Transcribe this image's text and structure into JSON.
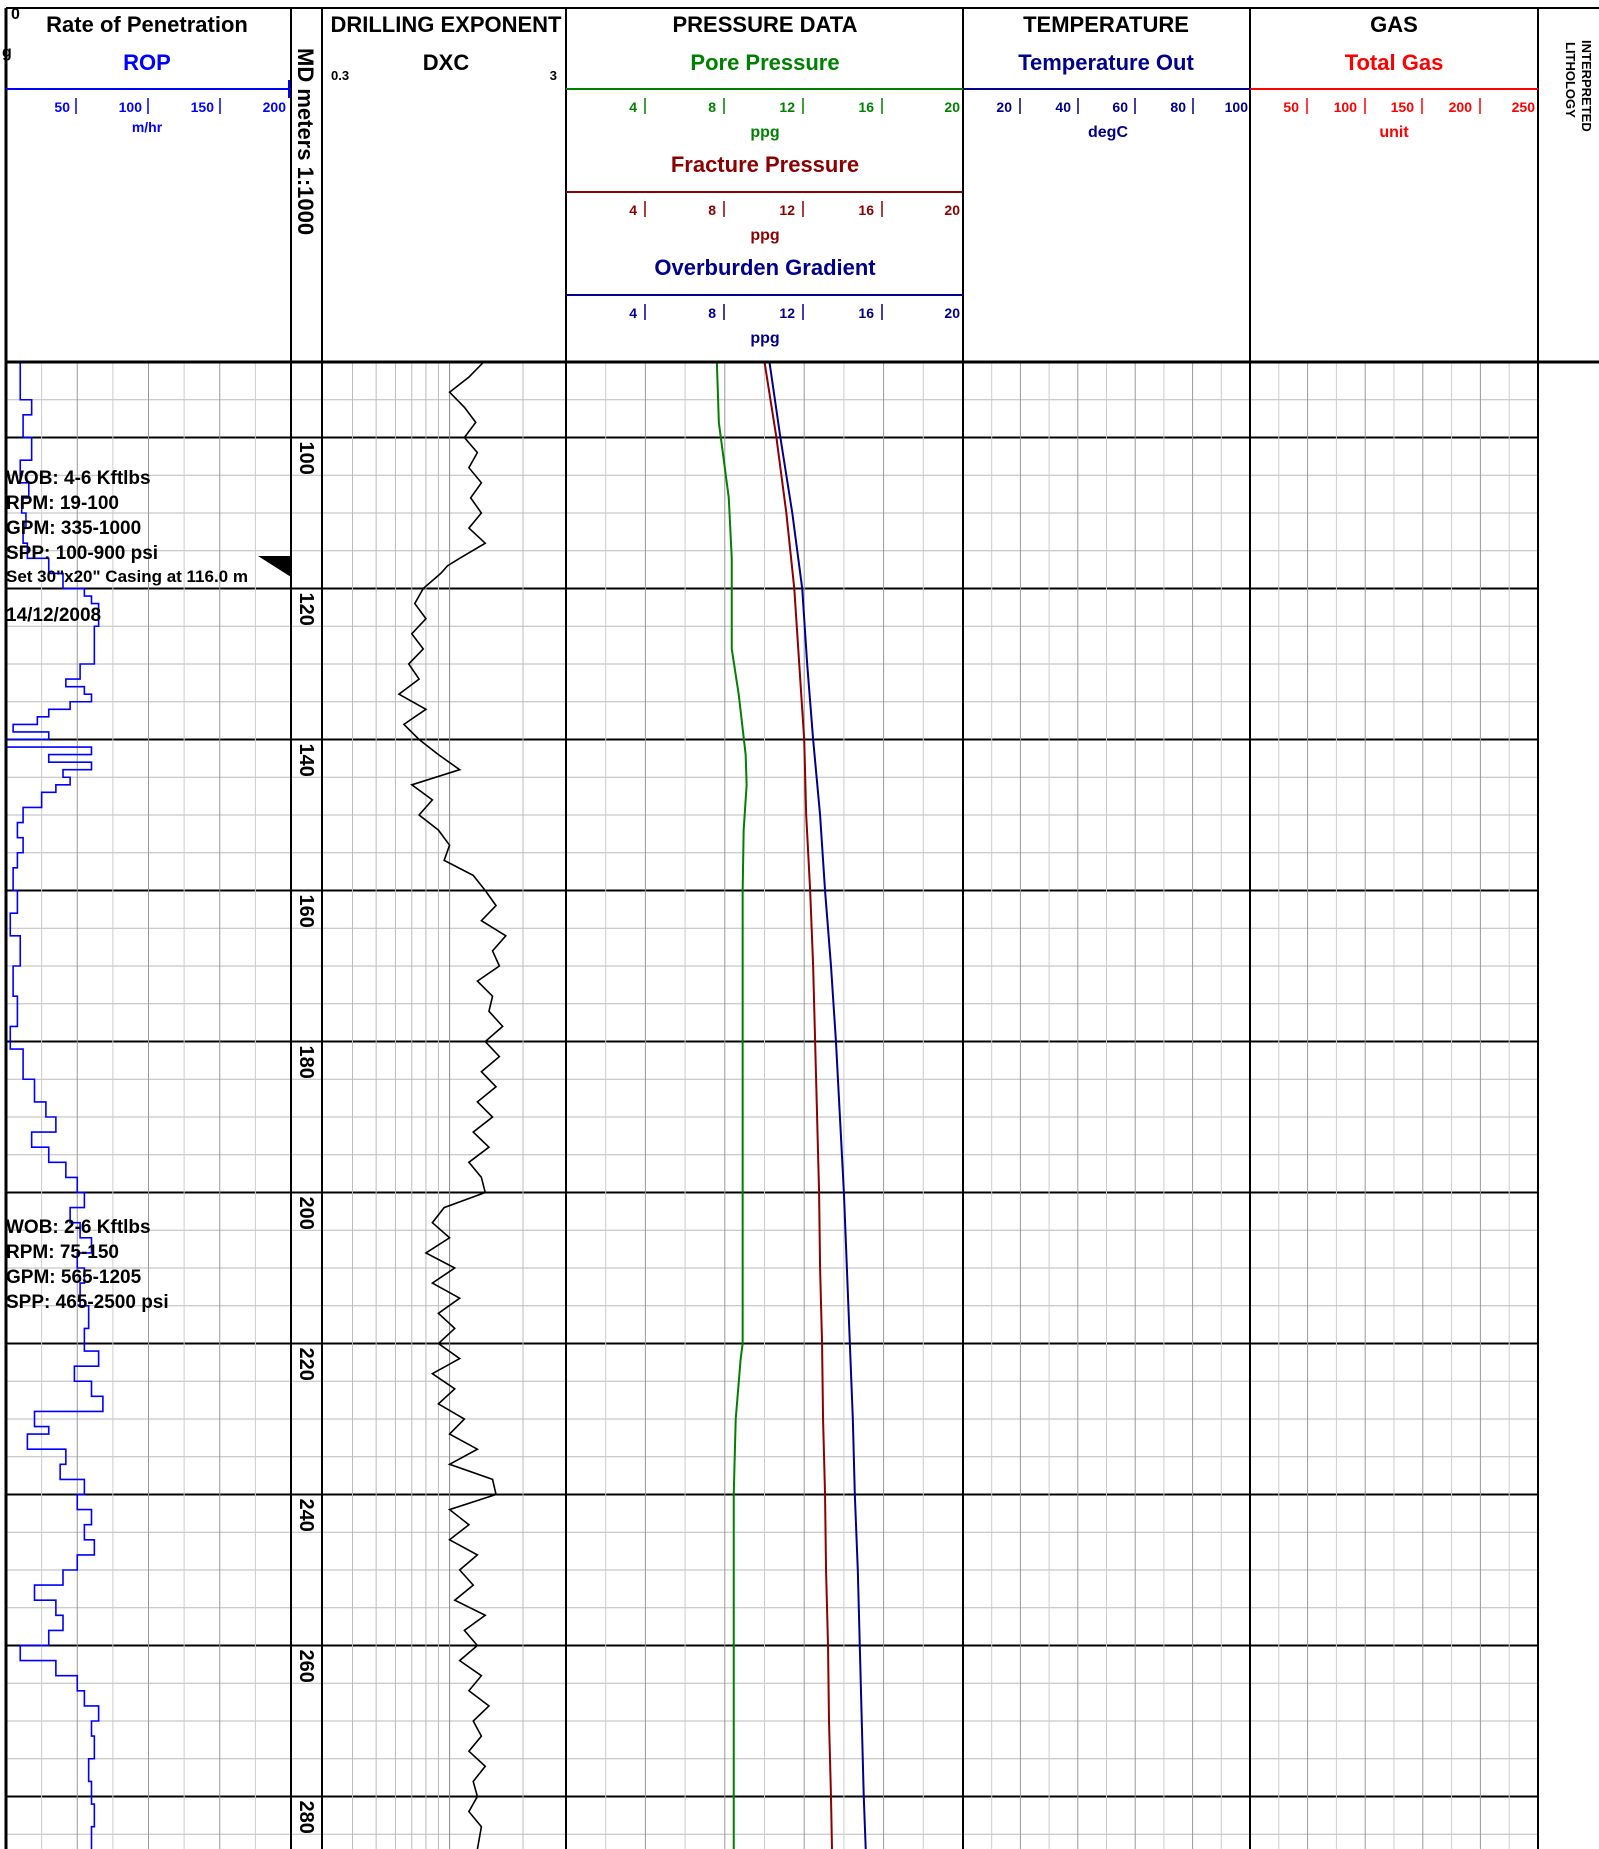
{
  "depth_track": {
    "label": "MD meters 1:1000",
    "range": [
      90,
      287
    ],
    "major_every": 20,
    "minor_every": 5
  },
  "corner_marks": [
    "0",
    "g"
  ],
  "lithology_label": [
    "INTERPRETED",
    "LITHOLOGY"
  ],
  "tracks": {
    "rop": {
      "title": "Rate of Penetration",
      "curve": "ROP",
      "color": "#0000ff",
      "ticks": [
        "50",
        "100",
        "150",
        "200"
      ],
      "unit": "m/hr",
      "range": [
        0,
        200
      ]
    },
    "dxc": {
      "title": "DRILLING  EXPONENT",
      "curve": "DXC",
      "min_label": "0.3",
      "max_label": "3",
      "range": [
        0.3,
        3
      ],
      "log_scale": true
    },
    "pressure": {
      "title": "PRESSURE  DATA",
      "curves": [
        {
          "name": "Pore Pressure",
          "color": "#008000",
          "ticks": [
            "4",
            "8",
            "12",
            "16",
            "20"
          ],
          "unit": "ppg"
        },
        {
          "name": "Fracture Pressure",
          "color": "#8b0000",
          "ticks": [
            "4",
            "8",
            "12",
            "16",
            "20"
          ],
          "unit": "ppg"
        },
        {
          "name": "Overburden Gradient",
          "color": "#00008b",
          "ticks": [
            "4",
            "8",
            "12",
            "16",
            "20"
          ],
          "unit": "ppg"
        }
      ],
      "range": [
        0,
        20
      ]
    },
    "temperature": {
      "title": "TEMPERATURE",
      "curve": "Temperature Out",
      "color": "#00008b",
      "ticks": [
        "20",
        "40",
        "60",
        "80",
        "100"
      ],
      "unit": "degC",
      "range": [
        0,
        100
      ]
    },
    "gas": {
      "title": "GAS",
      "curve": "Total Gas",
      "color": "#ff0000",
      "ticks": [
        "50",
        "100",
        "150",
        "200",
        "250"
      ],
      "unit": "unit",
      "range": [
        0,
        250
      ]
    }
  },
  "annotations": {
    "block1": [
      "WOB: 4-6 Kftlbs",
      "RPM: 19-100",
      "GPM: 335-1000",
      "SPP: 100-900 psi"
    ],
    "casing": "Set 30\"x20\" Casing at 116.0 m",
    "date": "14/12/2008",
    "block2": [
      "WOB: 2-6 Kftlbs",
      "RPM: 75-150",
      "GPM: 565-1205",
      "SPP: 465-2500 psi"
    ]
  },
  "chart_data": {
    "type": "line",
    "depth_unit": "m",
    "series": [
      {
        "name": "ROP",
        "x_unit": "m/hr",
        "points": [
          [
            90,
            8
          ],
          [
            95,
            10
          ],
          [
            97,
            18
          ],
          [
            100,
            12
          ],
          [
            103,
            18
          ],
          [
            106,
            10
          ],
          [
            108,
            16
          ],
          [
            110,
            11
          ],
          [
            112,
            14
          ],
          [
            114,
            12
          ],
          [
            116,
            15
          ],
          [
            118,
            30
          ],
          [
            120,
            40
          ],
          [
            121,
            55
          ],
          [
            122,
            60
          ],
          [
            125,
            65
          ],
          [
            128,
            62
          ],
          [
            130,
            62
          ],
          [
            132,
            52
          ],
          [
            133,
            42
          ],
          [
            134,
            55
          ],
          [
            135,
            60
          ],
          [
            136,
            45
          ],
          [
            137,
            30
          ],
          [
            138,
            22
          ],
          [
            139,
            5
          ],
          [
            140,
            30
          ],
          [
            141,
            0
          ],
          [
            142,
            60
          ],
          [
            143,
            30
          ],
          [
            144,
            60
          ],
          [
            145,
            40
          ],
          [
            146,
            45
          ],
          [
            147,
            35
          ],
          [
            149,
            25
          ],
          [
            151,
            12
          ],
          [
            153,
            8
          ],
          [
            155,
            12
          ],
          [
            157,
            8
          ],
          [
            160,
            5
          ],
          [
            163,
            8
          ],
          [
            166,
            3
          ],
          [
            170,
            10
          ],
          [
            174,
            5
          ],
          [
            178,
            8
          ],
          [
            181,
            3
          ],
          [
            185,
            12
          ],
          [
            188,
            20
          ],
          [
            190,
            28
          ],
          [
            192,
            35
          ],
          [
            194,
            18
          ],
          [
            196,
            30
          ],
          [
            198,
            42
          ],
          [
            200,
            50
          ],
          [
            202,
            55
          ],
          [
            204,
            45
          ],
          [
            206,
            52
          ],
          [
            208,
            60
          ],
          [
            210,
            50
          ],
          [
            212,
            55
          ],
          [
            215,
            52
          ],
          [
            218,
            58
          ],
          [
            221,
            55
          ],
          [
            223,
            65
          ],
          [
            225,
            48
          ],
          [
            227,
            60
          ],
          [
            229,
            68
          ],
          [
            231,
            20
          ],
          [
            232,
            30
          ],
          [
            234,
            15
          ],
          [
            236,
            42
          ],
          [
            238,
            38
          ],
          [
            240,
            55
          ],
          [
            242,
            50
          ],
          [
            244,
            60
          ],
          [
            246,
            55
          ],
          [
            248,
            62
          ],
          [
            250,
            50
          ],
          [
            252,
            40
          ],
          [
            254,
            20
          ],
          [
            256,
            35
          ],
          [
            258,
            40
          ],
          [
            260,
            30
          ],
          [
            262,
            10
          ],
          [
            264,
            35
          ],
          [
            266,
            50
          ],
          [
            268,
            55
          ],
          [
            270,
            65
          ],
          [
            272,
            60
          ],
          [
            275,
            62
          ],
          [
            278,
            58
          ],
          [
            281,
            60
          ],
          [
            284,
            62
          ],
          [
            287,
            60
          ]
        ]
      },
      {
        "name": "DXC",
        "x_unit": "dxc",
        "points": [
          [
            90,
            1.38
          ],
          [
            92,
            1.2
          ],
          [
            94,
            1.0
          ],
          [
            96,
            1.15
          ],
          [
            98,
            1.28
          ],
          [
            100,
            1.15
          ],
          [
            102,
            1.3
          ],
          [
            104,
            1.2
          ],
          [
            106,
            1.35
          ],
          [
            108,
            1.22
          ],
          [
            110,
            1.35
          ],
          [
            112,
            1.2
          ],
          [
            114,
            1.4
          ],
          [
            116,
            1.1
          ],
          [
            117,
            0.98
          ],
          [
            118,
            0.92
          ],
          [
            120,
            0.78
          ],
          [
            122,
            0.72
          ],
          [
            124,
            0.8
          ],
          [
            126,
            0.7
          ],
          [
            128,
            0.78
          ],
          [
            130,
            0.68
          ],
          [
            132,
            0.75
          ],
          [
            134,
            0.62
          ],
          [
            136,
            0.8
          ],
          [
            138,
            0.65
          ],
          [
            140,
            0.75
          ],
          [
            142,
            0.9
          ],
          [
            144,
            1.1
          ],
          [
            146,
            0.7
          ],
          [
            148,
            0.85
          ],
          [
            150,
            0.75
          ],
          [
            152,
            0.9
          ],
          [
            154,
            1.0
          ],
          [
            156,
            0.95
          ],
          [
            158,
            1.25
          ],
          [
            160,
            1.4
          ],
          [
            162,
            1.55
          ],
          [
            164,
            1.35
          ],
          [
            166,
            1.7
          ],
          [
            168,
            1.5
          ],
          [
            170,
            1.6
          ],
          [
            172,
            1.3
          ],
          [
            174,
            1.5
          ],
          [
            176,
            1.45
          ],
          [
            178,
            1.65
          ],
          [
            180,
            1.4
          ],
          [
            182,
            1.6
          ],
          [
            184,
            1.35
          ],
          [
            186,
            1.55
          ],
          [
            188,
            1.3
          ],
          [
            190,
            1.5
          ],
          [
            192,
            1.25
          ],
          [
            194,
            1.45
          ],
          [
            196,
            1.2
          ],
          [
            198,
            1.35
          ],
          [
            200,
            1.4
          ],
          [
            202,
            0.95
          ],
          [
            204,
            0.85
          ],
          [
            206,
            1.0
          ],
          [
            208,
            0.8
          ],
          [
            210,
            1.05
          ],
          [
            212,
            0.85
          ],
          [
            214,
            1.1
          ],
          [
            216,
            0.9
          ],
          [
            218,
            1.05
          ],
          [
            220,
            0.9
          ],
          [
            222,
            1.1
          ],
          [
            224,
            0.85
          ],
          [
            226,
            1.05
          ],
          [
            228,
            0.9
          ],
          [
            230,
            1.15
          ],
          [
            232,
            1.0
          ],
          [
            234,
            1.3
          ],
          [
            236,
            1.0
          ],
          [
            238,
            1.5
          ],
          [
            240,
            1.55
          ],
          [
            242,
            1.0
          ],
          [
            244,
            1.2
          ],
          [
            246,
            1.0
          ],
          [
            248,
            1.3
          ],
          [
            250,
            1.1
          ],
          [
            252,
            1.25
          ],
          [
            254,
            1.05
          ],
          [
            256,
            1.4
          ],
          [
            258,
            1.15
          ],
          [
            260,
            1.3
          ],
          [
            262,
            1.1
          ],
          [
            264,
            1.35
          ],
          [
            266,
            1.2
          ],
          [
            268,
            1.45
          ],
          [
            270,
            1.25
          ],
          [
            272,
            1.35
          ],
          [
            274,
            1.2
          ],
          [
            276,
            1.4
          ],
          [
            278,
            1.25
          ],
          [
            280,
            1.3
          ],
          [
            282,
            1.2
          ],
          [
            284,
            1.35
          ],
          [
            287,
            1.3
          ]
        ]
      },
      {
        "name": "Pore Pressure",
        "x_unit": "ppg",
        "points": [
          [
            90,
            7.6
          ],
          [
            98,
            7.7
          ],
          [
            108,
            8.2
          ],
          [
            116,
            8.35
          ],
          [
            128,
            8.35
          ],
          [
            134,
            8.7
          ],
          [
            142,
            9.05
          ],
          [
            146,
            9.1
          ],
          [
            152,
            8.95
          ],
          [
            160,
            8.9
          ],
          [
            190,
            8.9
          ],
          [
            220,
            8.9
          ],
          [
            222,
            8.8
          ],
          [
            230,
            8.55
          ],
          [
            240,
            8.45
          ],
          [
            287,
            8.45
          ]
        ]
      },
      {
        "name": "Fracture Pressure",
        "x_unit": "ppg",
        "points": [
          [
            90,
            10.0
          ],
          [
            100,
            10.6
          ],
          [
            110,
            11.1
          ],
          [
            120,
            11.5
          ],
          [
            130,
            11.75
          ],
          [
            140,
            12.0
          ],
          [
            150,
            12.1
          ],
          [
            160,
            12.3
          ],
          [
            170,
            12.45
          ],
          [
            180,
            12.55
          ],
          [
            190,
            12.65
          ],
          [
            200,
            12.75
          ],
          [
            210,
            12.8
          ],
          [
            220,
            12.9
          ],
          [
            230,
            12.95
          ],
          [
            240,
            13.05
          ],
          [
            250,
            13.1
          ],
          [
            260,
            13.2
          ],
          [
            270,
            13.25
          ],
          [
            280,
            13.35
          ],
          [
            287,
            13.4
          ]
        ]
      },
      {
        "name": "Overburden Gradient",
        "x_unit": "ppg",
        "points": [
          [
            90,
            10.25
          ],
          [
            100,
            10.8
          ],
          [
            110,
            11.4
          ],
          [
            120,
            11.9
          ],
          [
            130,
            12.15
          ],
          [
            140,
            12.45
          ],
          [
            150,
            12.8
          ],
          [
            160,
            13.05
          ],
          [
            170,
            13.35
          ],
          [
            180,
            13.6
          ],
          [
            190,
            13.8
          ],
          [
            200,
            14.0
          ],
          [
            210,
            14.15
          ],
          [
            220,
            14.3
          ],
          [
            230,
            14.45
          ],
          [
            240,
            14.55
          ],
          [
            250,
            14.7
          ],
          [
            260,
            14.8
          ],
          [
            270,
            14.9
          ],
          [
            280,
            15.0
          ],
          [
            287,
            15.1
          ]
        ]
      }
    ]
  }
}
